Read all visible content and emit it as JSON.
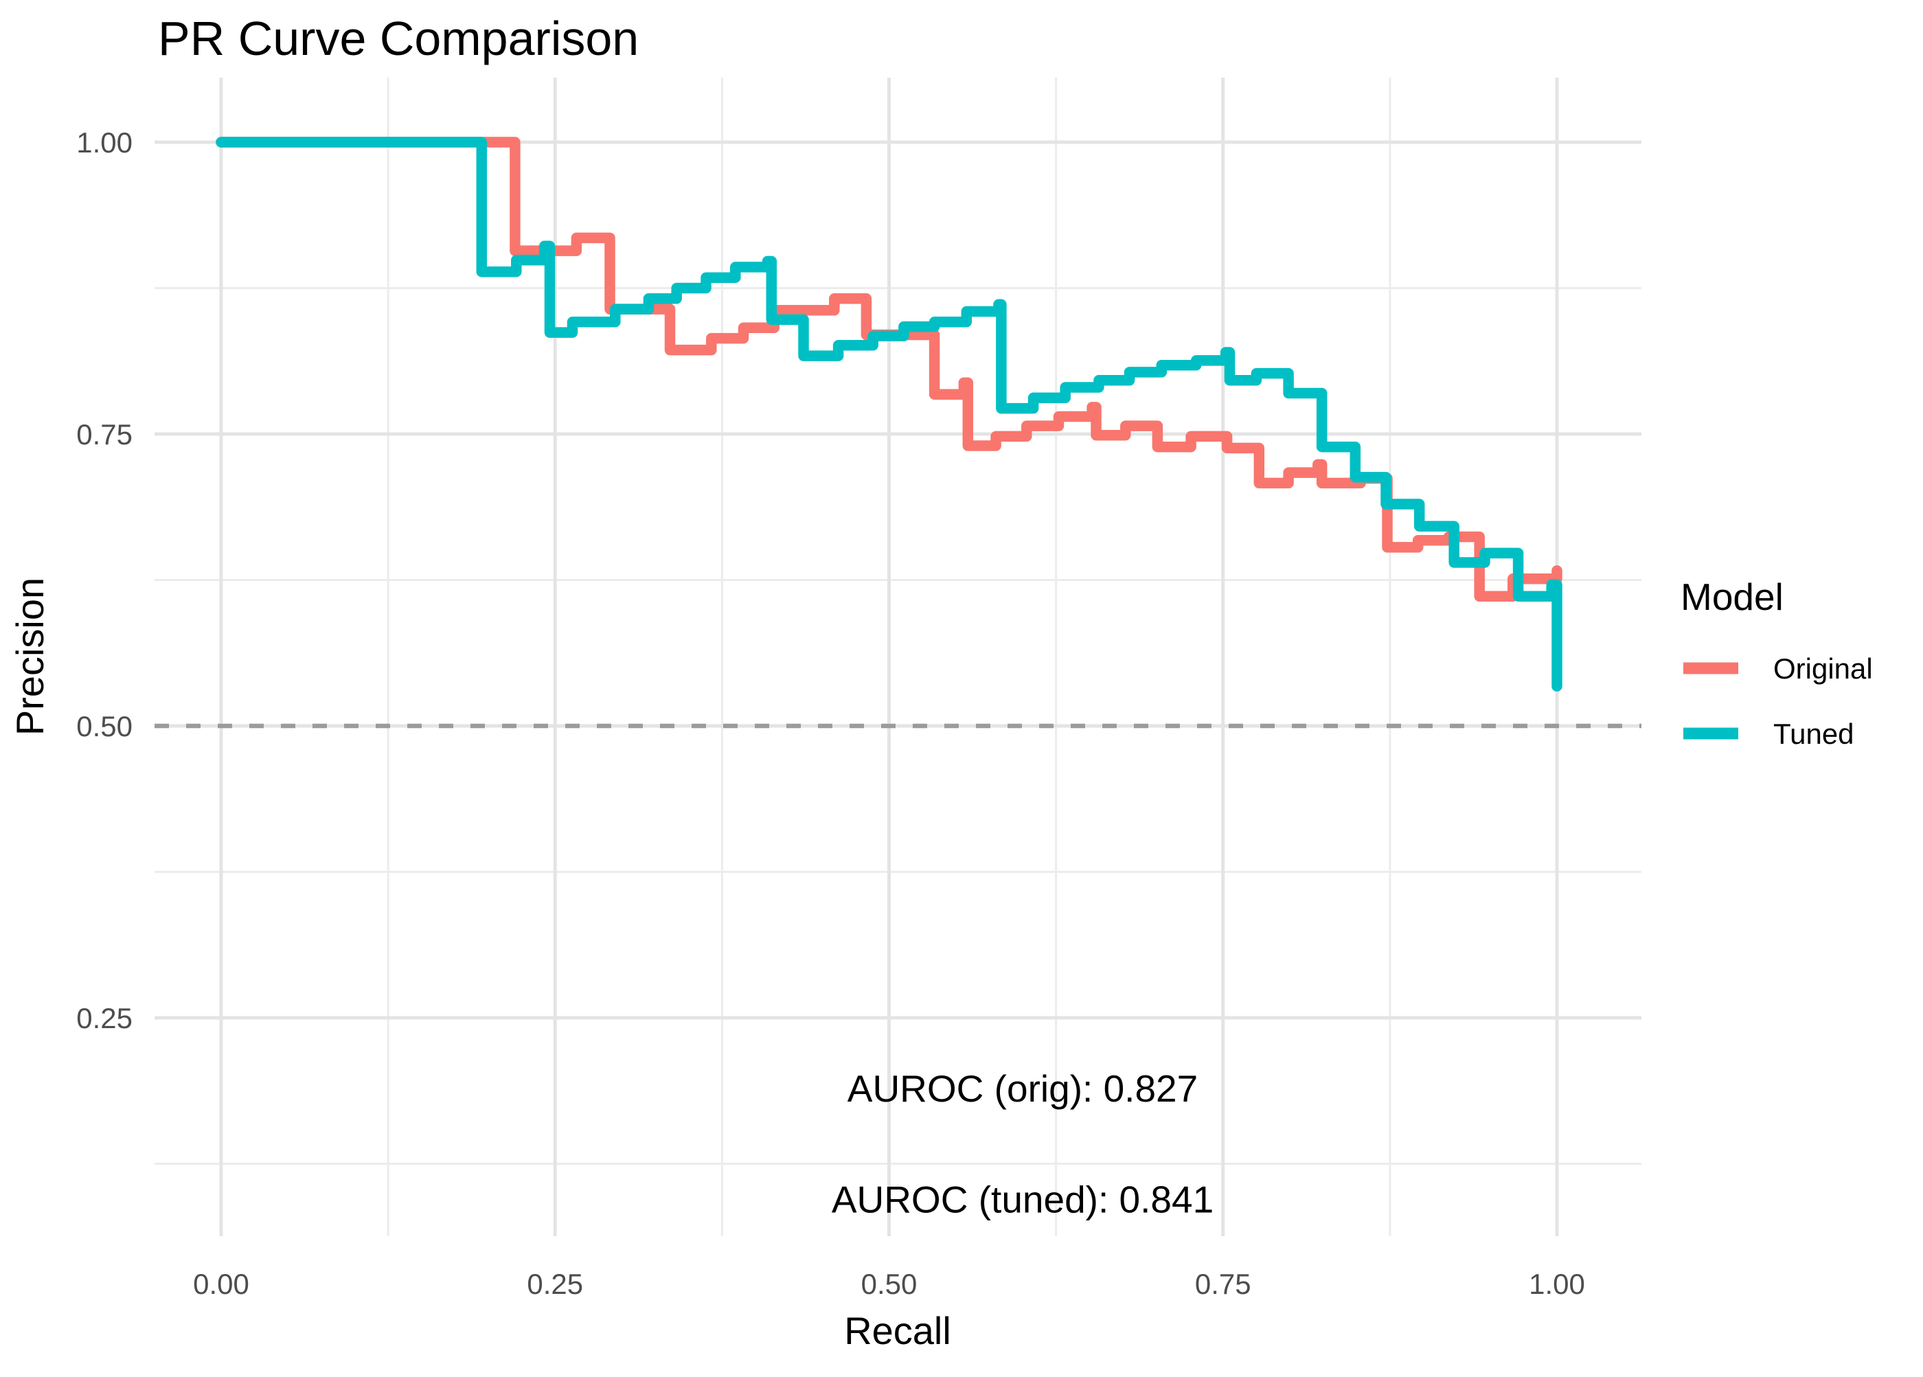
{
  "title": "PR Curve Comparison",
  "chart_data": {
    "type": "line",
    "subtype": "step-hv",
    "title": "PR Curve Comparison",
    "xlabel": "Recall",
    "ylabel": "Precision",
    "grid": "on",
    "legend_position": "right",
    "xlim": [
      -0.05,
      1.063
    ],
    "ylim": [
      0.063,
      1.055
    ],
    "x_tick_values": [
      0.0,
      0.25,
      0.5,
      0.75,
      1.0
    ],
    "x_tick_labels": [
      "0.00",
      "0.25",
      "0.50",
      "0.75",
      "1.00"
    ],
    "y_tick_values": [
      0.25,
      0.5,
      0.75,
      1.0
    ],
    "y_tick_labels": [
      "0.25",
      "0.50",
      "0.75",
      "1.00"
    ],
    "x_minor_ticks": [
      0.125,
      0.375,
      0.625,
      0.875
    ],
    "y_minor_ticks": [
      0.125,
      0.375,
      0.625,
      0.875
    ],
    "colors": {
      "original": "#F8766D",
      "tuned": "#00BFC4",
      "grid_major": "#E4E4E4",
      "grid_minor": "#ECECEC",
      "baseline": "#9B9B9B",
      "axis_text": "#4D4D4D"
    },
    "baseline": {
      "y": 0.5,
      "style": "dashed",
      "color": "#9B9B9B"
    },
    "legend": {
      "title": "Model",
      "entries": [
        {
          "label": "Original",
          "color": "#F8766D"
        },
        {
          "label": "Tuned",
          "color": "#00BFC4"
        }
      ]
    },
    "annotations": [
      {
        "text": "AUROC (orig): 0.827",
        "x": 0.6,
        "y": 0.19
      },
      {
        "text": "AUROC (tuned): 0.841",
        "x": 0.6,
        "y": 0.095
      }
    ],
    "series": [
      {
        "name": "Original",
        "color": "#F8766D",
        "points": [
          [
            0.0,
            1.0
          ],
          [
            0.22,
            0.907
          ],
          [
            0.266,
            0.918
          ],
          [
            0.291,
            0.857
          ],
          [
            0.336,
            0.822
          ],
          [
            0.367,
            0.832
          ],
          [
            0.391,
            0.841
          ],
          [
            0.414,
            0.856
          ],
          [
            0.459,
            0.866
          ],
          [
            0.483,
            0.835
          ],
          [
            0.534,
            0.784
          ],
          [
            0.556,
            0.794
          ],
          [
            0.559,
            0.74
          ],
          [
            0.58,
            0.748
          ],
          [
            0.603,
            0.757
          ],
          [
            0.627,
            0.765
          ],
          [
            0.652,
            0.773
          ],
          [
            0.655,
            0.749
          ],
          [
            0.677,
            0.757
          ],
          [
            0.701,
            0.739
          ],
          [
            0.726,
            0.748
          ],
          [
            0.753,
            0.738
          ],
          [
            0.777,
            0.708
          ],
          [
            0.799,
            0.717
          ],
          [
            0.821,
            0.724
          ],
          [
            0.824,
            0.708
          ],
          [
            0.853,
            0.712
          ],
          [
            0.873,
            0.653
          ],
          [
            0.896,
            0.659
          ],
          [
            0.919,
            0.662
          ],
          [
            0.942,
            0.611
          ],
          [
            0.967,
            0.626
          ],
          [
            1.0,
            0.633
          ]
        ]
      },
      {
        "name": "Tuned",
        "color": "#00BFC4",
        "points": [
          [
            0.0,
            1.0
          ],
          [
            0.195,
            0.889
          ],
          [
            0.221,
            0.899
          ],
          [
            0.242,
            0.911
          ],
          [
            0.246,
            0.837
          ],
          [
            0.263,
            0.846
          ],
          [
            0.295,
            0.857
          ],
          [
            0.32,
            0.866
          ],
          [
            0.341,
            0.875
          ],
          [
            0.363,
            0.884
          ],
          [
            0.385,
            0.893
          ],
          [
            0.409,
            0.898
          ],
          [
            0.412,
            0.848
          ],
          [
            0.436,
            0.817
          ],
          [
            0.462,
            0.826
          ],
          [
            0.488,
            0.834
          ],
          [
            0.511,
            0.842
          ],
          [
            0.534,
            0.846
          ],
          [
            0.558,
            0.855
          ],
          [
            0.582,
            0.861
          ],
          [
            0.584,
            0.772
          ],
          [
            0.608,
            0.781
          ],
          [
            0.632,
            0.79
          ],
          [
            0.657,
            0.796
          ],
          [
            0.68,
            0.803
          ],
          [
            0.704,
            0.809
          ],
          [
            0.73,
            0.813
          ],
          [
            0.752,
            0.82
          ],
          [
            0.755,
            0.796
          ],
          [
            0.775,
            0.802
          ],
          [
            0.799,
            0.785
          ],
          [
            0.824,
            0.739
          ],
          [
            0.849,
            0.713
          ],
          [
            0.872,
            0.69
          ],
          [
            0.897,
            0.671
          ],
          [
            0.923,
            0.64
          ],
          [
            0.946,
            0.648
          ],
          [
            0.971,
            0.611
          ],
          [
            0.996,
            0.621
          ],
          [
            1.0,
            0.534
          ]
        ]
      }
    ]
  }
}
